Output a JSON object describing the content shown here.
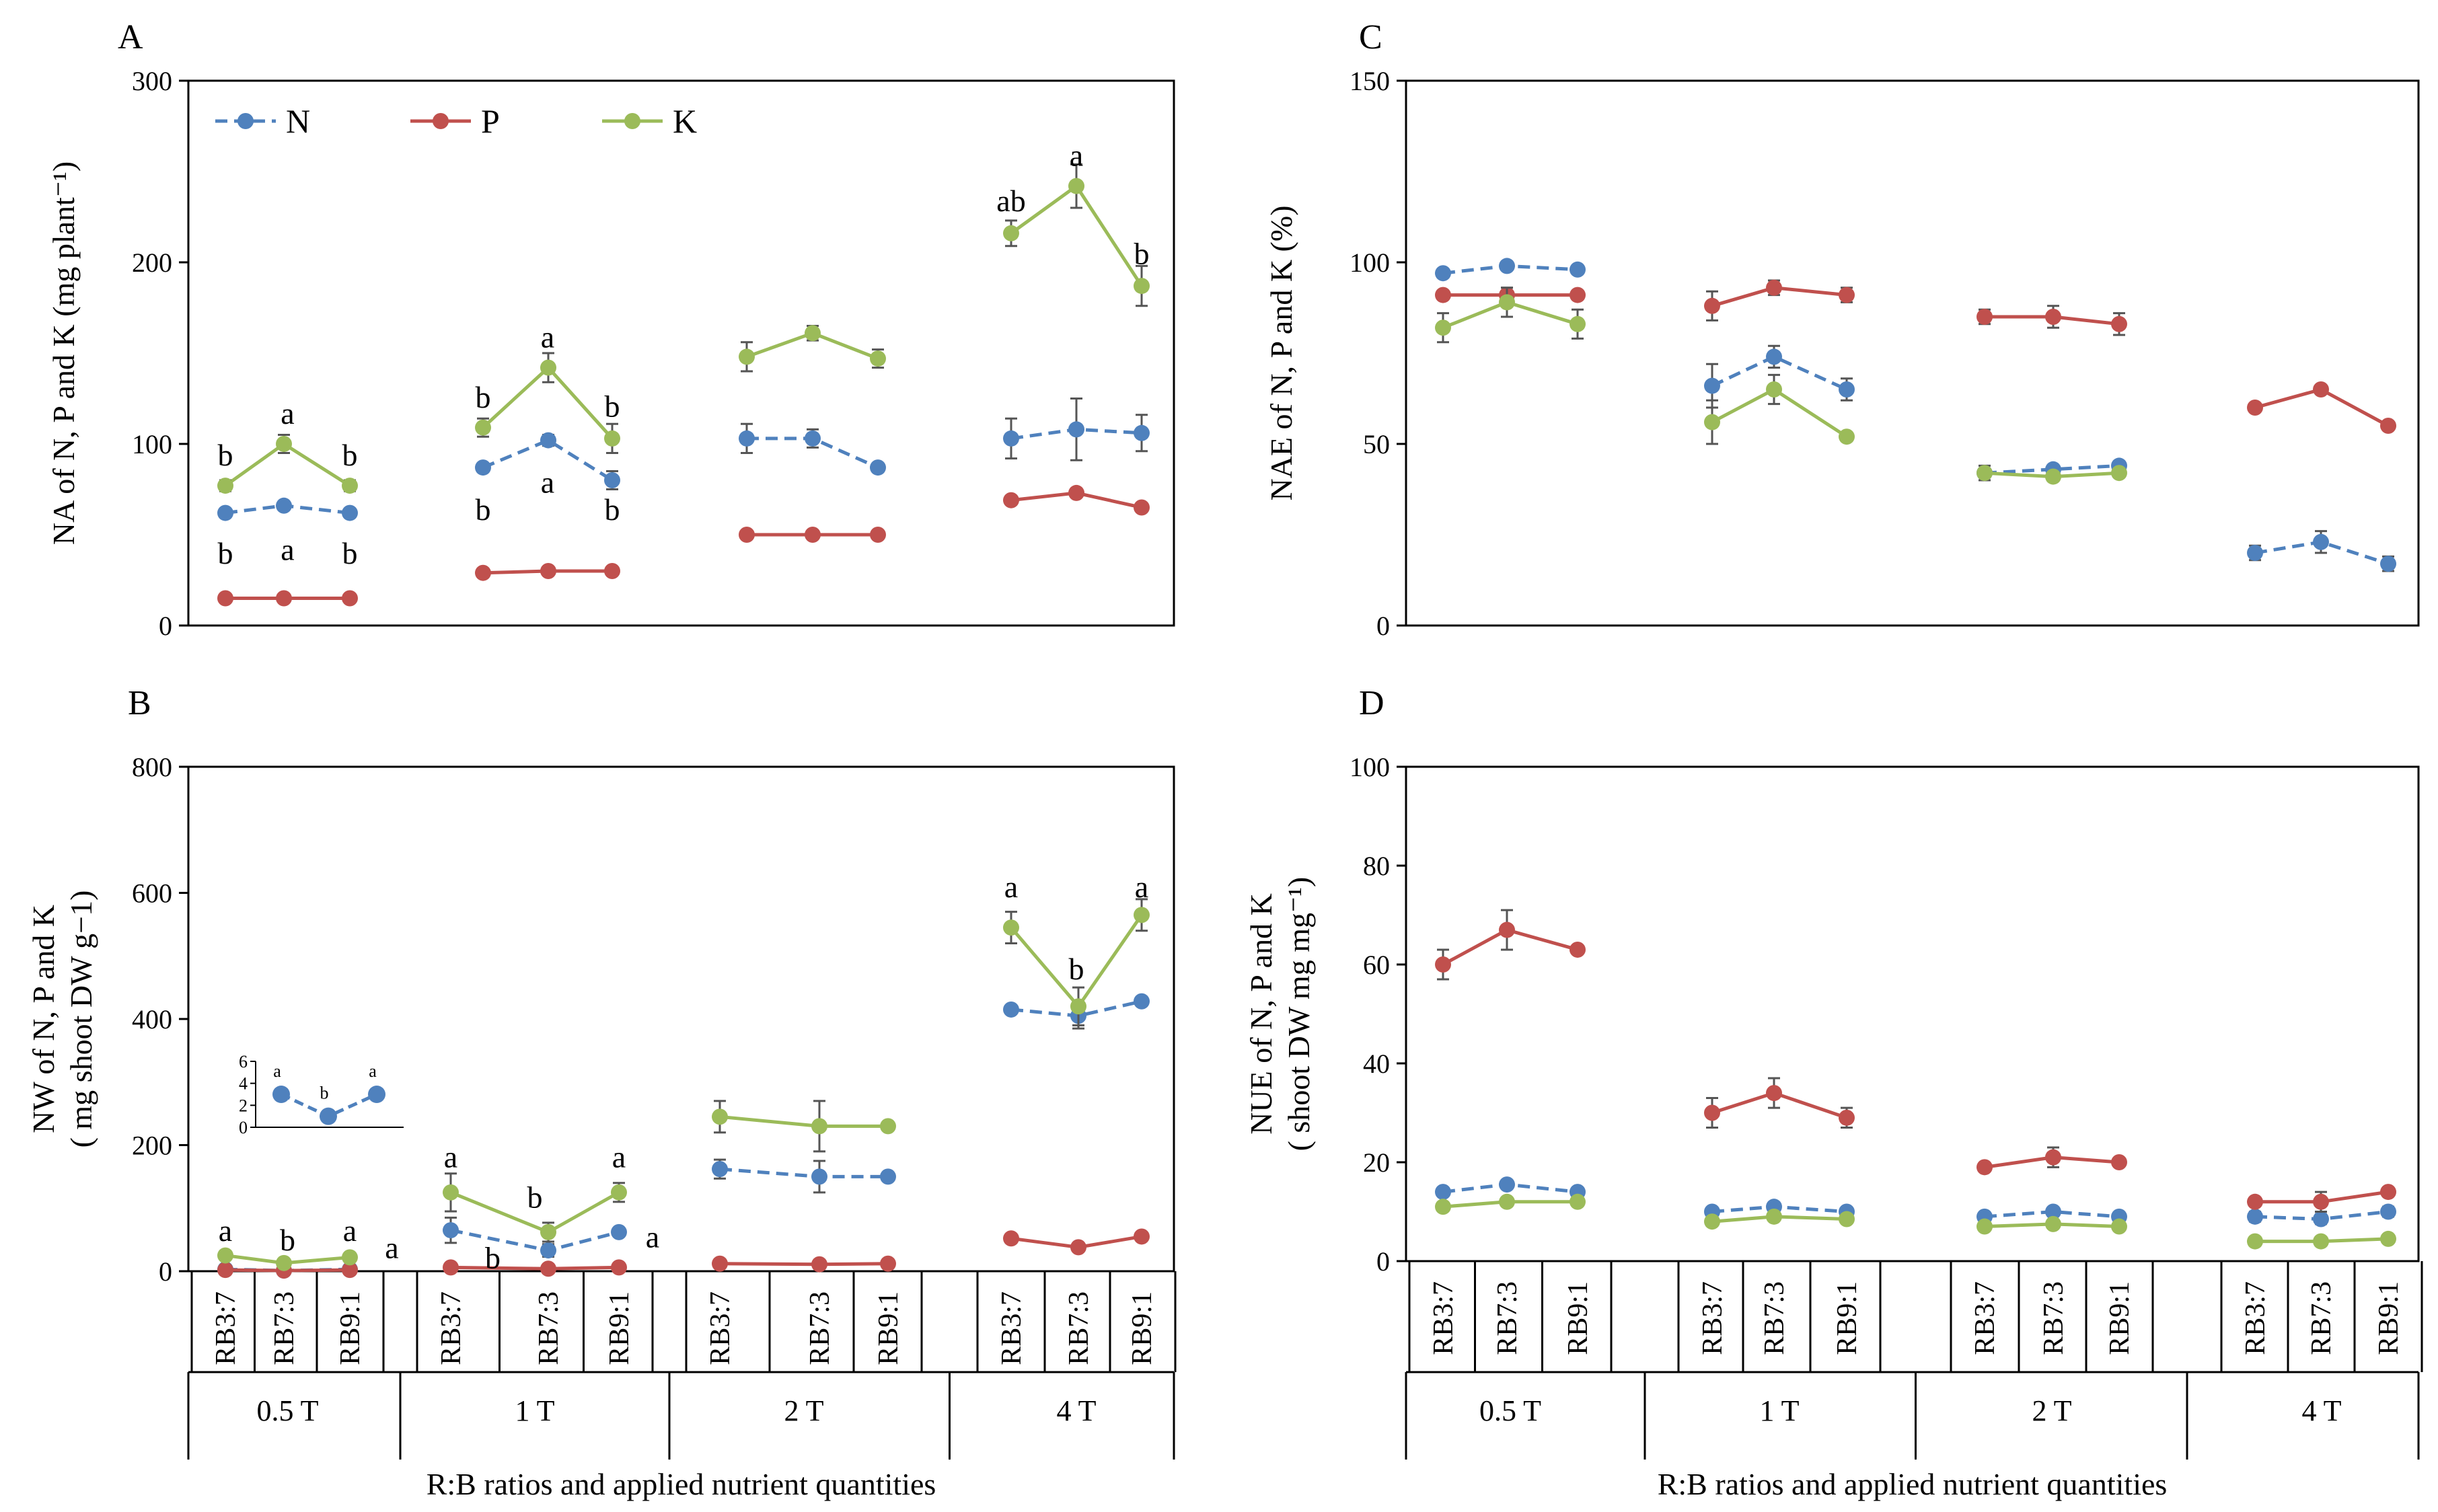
{
  "chart_data": [
    {
      "id": "A",
      "type": "line",
      "panel_label": "A",
      "ylabel": "NA of  N, P and K (mg plant⁻¹)",
      "ylim": [
        0,
        300
      ],
      "yticks": [
        0,
        100,
        200,
        300
      ],
      "xlabel": "",
      "legend": {
        "position": "top-left",
        "entries": [
          "N",
          "P",
          "K"
        ]
      },
      "series": [
        {
          "name": "N",
          "style": "dashed",
          "groups": [
            [
              62,
              66,
              62
            ],
            [
              87,
              102,
              80
            ],
            [
              103,
              103,
              87
            ],
            [
              103,
              108,
              106
            ]
          ],
          "err": [
            [
              0,
              0,
              0
            ],
            [
              0,
              3,
              5
            ],
            [
              8,
              5,
              0
            ],
            [
              11,
              17,
              10
            ]
          ]
        },
        {
          "name": "P",
          "style": "solid",
          "groups": [
            [
              15,
              15,
              15
            ],
            [
              29,
              30,
              30
            ],
            [
              50,
              50,
              50
            ],
            [
              69,
              73,
              65
            ]
          ],
          "err": [
            [
              0,
              0,
              0
            ],
            [
              0,
              0,
              0
            ],
            [
              0,
              0,
              0
            ],
            [
              0,
              0,
              0
            ]
          ]
        },
        {
          "name": "K",
          "style": "solid",
          "groups": [
            [
              77,
              100,
              77
            ],
            [
              109,
              142,
              103
            ],
            [
              148,
              161,
              147
            ],
            [
              216,
              242,
              187
            ]
          ],
          "err": [
            [
              3,
              5,
              3
            ],
            [
              5,
              8,
              8
            ],
            [
              8,
              4,
              5
            ],
            [
              7,
              12,
              11
            ]
          ]
        }
      ],
      "annotations": [
        {
          "text": "b",
          "group": 0,
          "pos": 0,
          "value": 94
        },
        {
          "text": "a",
          "group": 0,
          "pos": 1,
          "value": 117
        },
        {
          "text": "b",
          "group": 0,
          "pos": 2,
          "value": 94
        },
        {
          "text": "b",
          "group": 0,
          "pos": 0,
          "value": 40
        },
        {
          "text": "a",
          "group": 0,
          "pos": 1,
          "value": 42
        },
        {
          "text": "b",
          "group": 0,
          "pos": 2,
          "value": 40
        },
        {
          "text": "b",
          "group": 1,
          "pos": 0,
          "value": 126
        },
        {
          "text": "a",
          "group": 1,
          "pos": 1,
          "value": 159
        },
        {
          "text": "b",
          "group": 1,
          "pos": 2,
          "value": 121
        },
        {
          "text": "b",
          "group": 1,
          "pos": 0,
          "value": 64
        },
        {
          "text": "a",
          "group": 1,
          "pos": 1,
          "value": 79
        },
        {
          "text": "b",
          "group": 1,
          "pos": 2,
          "value": 64
        },
        {
          "text": "ab",
          "group": 3,
          "pos": 0,
          "value": 234
        },
        {
          "text": "a",
          "group": 3,
          "pos": 1,
          "value": 259
        },
        {
          "text": "b",
          "group": 3,
          "pos": 2,
          "value": 205
        }
      ]
    },
    {
      "id": "B",
      "type": "line",
      "panel_label": "B",
      "ylabel": [
        "NW  of  N, P and K",
        "( mg shoot DW g−1)"
      ],
      "ylim": [
        0,
        800
      ],
      "yticks": [
        0,
        200,
        400,
        600,
        800
      ],
      "xlabel": "R:B ratios and applied nutrient quantities",
      "series": [
        {
          "name": "N",
          "style": "dashed",
          "groups": [
            [
              3,
              1,
              3
            ],
            [
              65,
              33,
              62
            ],
            [
              162,
              150,
              150
            ],
            [
              415,
              405,
              428
            ]
          ],
          "err": [
            [
              0,
              0,
              0
            ],
            [
              20,
              10,
              0
            ],
            [
              15,
              25,
              0
            ],
            [
              0,
              20,
              0
            ]
          ]
        },
        {
          "name": "P",
          "style": "solid",
          "groups": [
            [
              2,
              1,
              2
            ],
            [
              6,
              4,
              6
            ],
            [
              12,
              11,
              12
            ],
            [
              52,
              38,
              55
            ]
          ],
          "err": [
            [
              0,
              0,
              0
            ],
            [
              0,
              0,
              0
            ],
            [
              0,
              0,
              0
            ],
            [
              0,
              0,
              0
            ]
          ]
        },
        {
          "name": "K",
          "style": "solid",
          "groups": [
            [
              25,
              13,
              22
            ],
            [
              125,
              62,
              125
            ],
            [
              245,
              230,
              230
            ],
            [
              545,
              420,
              565
            ]
          ],
          "err": [
            [
              0,
              0,
              0
            ],
            [
              30,
              15,
              15
            ],
            [
              25,
              40,
              0
            ],
            [
              25,
              30,
              25
            ]
          ]
        }
      ],
      "annotations": [
        {
          "text": "a",
          "group": 0,
          "pos": 0,
          "value": 65
        },
        {
          "text": "b",
          "group": 0,
          "pos": 1,
          "value": 50
        },
        {
          "text": "a",
          "group": 0,
          "pos": 2,
          "value": 65
        },
        {
          "text": "a",
          "group": 1,
          "pos": 0,
          "value": 182
        },
        {
          "text": "b",
          "group": 1,
          "pos": 1,
          "value": 118
        },
        {
          "text": "a",
          "group": 1,
          "pos": 2,
          "value": 182
        },
        {
          "text": "a",
          "group": 1,
          "pos": -0.7,
          "value": 38
        },
        {
          "text": "b",
          "group": 1,
          "pos": 0.5,
          "value": 22
        },
        {
          "text": "a",
          "group": 1,
          "pos": 2.4,
          "value": 55
        },
        {
          "text": "a",
          "group": 3,
          "pos": 0,
          "value": 610
        },
        {
          "text": "b",
          "group": 3,
          "pos": 1,
          "value": 480
        },
        {
          "text": "a",
          "group": 3,
          "pos": 2,
          "value": 610
        }
      ],
      "inset": {
        "series": "N",
        "group": "0.5 T",
        "values": [
          3,
          1,
          3
        ],
        "ylim": [
          0,
          6
        ],
        "yticks": [
          0,
          2,
          4,
          6
        ],
        "annotations": [
          "a",
          "b",
          "a"
        ]
      }
    },
    {
      "id": "C",
      "type": "line",
      "panel_label": "C",
      "ylabel": "NAE of  N, P and K (%)",
      "ylim": [
        0,
        150
      ],
      "yticks": [
        0,
        50,
        100,
        150
      ],
      "xlabel": "",
      "series": [
        {
          "name": "N",
          "style": "dashed",
          "groups": [
            [
              97,
              99,
              98
            ],
            [
              66,
              74,
              65
            ],
            [
              42,
              43,
              44
            ],
            [
              20,
              23,
              17
            ]
          ],
          "err": [
            [
              0,
              0,
              0
            ],
            [
              6,
              3,
              3
            ],
            [
              0,
              0,
              0
            ],
            [
              2,
              3,
              2
            ]
          ]
        },
        {
          "name": "P",
          "style": "solid",
          "groups": [
            [
              91,
              91,
              91
            ],
            [
              88,
              93,
              91
            ],
            [
              85,
              85,
              83
            ],
            [
              60,
              65,
              55
            ]
          ],
          "err": [
            [
              0,
              2,
              0
            ],
            [
              4,
              2,
              2
            ],
            [
              2,
              3,
              3
            ],
            [
              0,
              0,
              0
            ]
          ]
        },
        {
          "name": "K",
          "style": "solid",
          "groups": [
            [
              82,
              89,
              83
            ],
            [
              56,
              65,
              52
            ],
            [
              42,
              41,
              42
            ],
            [
              null,
              null,
              null
            ]
          ],
          "err": [
            [
              4,
              4,
              4
            ],
            [
              6,
              4,
              0
            ],
            [
              2,
              0,
              0
            ],
            [
              0,
              0,
              0
            ]
          ]
        }
      ],
      "annotations": []
    },
    {
      "id": "D",
      "type": "line",
      "panel_label": "D",
      "ylabel": [
        "NUE of N, P and K",
        "( shoot DW mg mg⁻¹)"
      ],
      "ylim": [
        0,
        100
      ],
      "yticks": [
        0,
        20,
        40,
        60,
        80,
        100
      ],
      "xlabel": "R:B ratios and applied nutrient quantities",
      "series": [
        {
          "name": "N",
          "style": "dashed",
          "groups": [
            [
              14,
              15.5,
              14
            ],
            [
              10,
              11,
              10
            ],
            [
              9,
              10,
              9
            ],
            [
              9,
              8.5,
              10
            ]
          ],
          "err": [
            [
              0,
              0,
              0
            ],
            [
              0,
              0,
              0
            ],
            [
              0,
              0,
              0
            ],
            [
              1,
              1,
              1
            ]
          ]
        },
        {
          "name": "P",
          "style": "solid",
          "groups": [
            [
              60,
              67,
              63
            ],
            [
              30,
              34,
              29
            ],
            [
              19,
              21,
              20
            ],
            [
              12,
              12,
              14
            ]
          ],
          "err": [
            [
              3,
              4,
              0
            ],
            [
              3,
              3,
              2
            ],
            [
              0,
              2,
              0
            ],
            [
              0,
              2,
              0
            ]
          ]
        },
        {
          "name": "K",
          "style": "solid",
          "groups": [
            [
              11,
              12,
              12
            ],
            [
              8,
              9,
              8.5
            ],
            [
              7,
              7.5,
              7
            ],
            [
              4,
              4,
              4.5
            ]
          ],
          "err": [
            [
              0,
              0,
              0
            ],
            [
              0,
              0,
              0
            ],
            [
              0,
              0,
              0
            ],
            [
              0,
              0,
              0
            ]
          ]
        }
      ],
      "annotations": []
    }
  ],
  "categories": [
    "RB3:7",
    "RB7:3",
    "RB9:1"
  ],
  "groups": [
    "0.5 T",
    "1 T",
    "2 T",
    "4 T"
  ],
  "colors": {
    "N": "#4f81bd",
    "P": "#c0504d",
    "K": "#9bbb59"
  }
}
